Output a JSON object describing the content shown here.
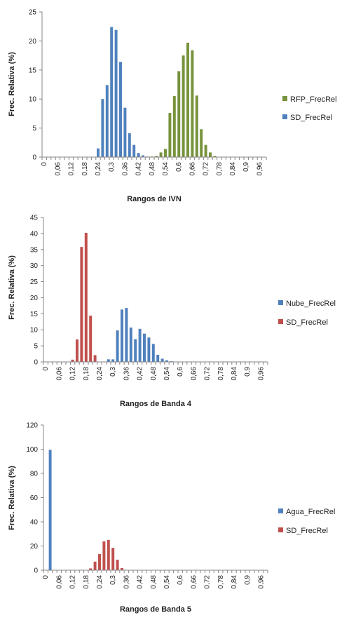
{
  "chart_data": [
    {
      "type": "bar",
      "xlabel": "Rangos de IVN",
      "ylabel": "Frec. Relativa (%)",
      "ylim": [
        0,
        25
      ],
      "yticks": [
        0,
        5,
        10,
        15,
        20,
        25
      ],
      "categories": [
        "0",
        "0,02",
        "0,04",
        "0,06",
        "0,08",
        "0,1",
        "0,12",
        "0,14",
        "0,16",
        "0,18",
        "0,2",
        "0,22",
        "0,24",
        "0,26",
        "0,28",
        "0,3",
        "0,32",
        "0,34",
        "0,36",
        "0,38",
        "0,4",
        "0,42",
        "0,44",
        "0,46",
        "0,48",
        "0,5",
        "0,52",
        "0,54",
        "0,56",
        "0,58",
        "0,6",
        "0,62",
        "0,64",
        "0,66",
        "0,68",
        "0,7",
        "0,72",
        "0,74",
        "0,76",
        "0,78",
        "0,8",
        "0,82",
        "0,84",
        "0,86",
        "0,88",
        "0,9",
        "0,92",
        "0,94",
        "0,96",
        "0,98"
      ],
      "xtick_labels": [
        "0",
        "0,06",
        "0,12",
        "0,18",
        "0,24",
        "0,3",
        "0,36",
        "0,42",
        "0,48",
        "0,54",
        "0,6",
        "0,66",
        "0,72",
        "0,78",
        "0,84",
        "0,9",
        "0,96"
      ],
      "series": [
        {
          "name": "RFP_FrecRel",
          "color": "#77933c",
          "values": [
            0,
            0,
            0,
            0,
            0,
            0,
            0,
            0,
            0,
            0,
            0,
            0,
            0,
            0,
            0,
            0,
            0,
            0,
            0,
            0,
            0,
            0,
            0,
            0,
            0.1,
            0.2,
            0.8,
            1.4,
            7.6,
            10.5,
            14.8,
            17.5,
            19.7,
            18.4,
            10.6,
            4.8,
            2.1,
            0.8,
            0.2,
            0,
            0,
            0,
            0,
            0,
            0,
            0,
            0,
            0,
            0,
            0
          ]
        },
        {
          "name": "SD_FrecRel",
          "color": "#4f81bd",
          "values": [
            0,
            0,
            0,
            0,
            0,
            0,
            0,
            0,
            0,
            0,
            0,
            0,
            1.5,
            10.0,
            12.4,
            22.4,
            21.9,
            16.4,
            8.5,
            4.1,
            2.1,
            0.7,
            0.3,
            0.1,
            0,
            0,
            0,
            0,
            0,
            0,
            0,
            0,
            0,
            0,
            0,
            0,
            0,
            0,
            0,
            0,
            0,
            0,
            0,
            0,
            0,
            0,
            0,
            0,
            0,
            0
          ]
        }
      ],
      "legend_position": "right"
    },
    {
      "type": "bar",
      "xlabel": "Rangos de Banda 4",
      "ylabel": "Frec. Relativa (%)",
      "ylim": [
        0,
        45
      ],
      "yticks": [
        0,
        5,
        10,
        15,
        20,
        25,
        30,
        35,
        40,
        45
      ],
      "categories": [
        "0",
        "0,02",
        "0,04",
        "0,06",
        "0,08",
        "0,1",
        "0,12",
        "0,14",
        "0,16",
        "0,18",
        "0,2",
        "0,22",
        "0,24",
        "0,26",
        "0,28",
        "0,3",
        "0,32",
        "0,34",
        "0,36",
        "0,38",
        "0,4",
        "0,42",
        "0,44",
        "0,46",
        "0,48",
        "0,5",
        "0,52",
        "0,54",
        "0,56",
        "0,58",
        "0,6",
        "0,62",
        "0,64",
        "0,66",
        "0,68",
        "0,7",
        "0,72",
        "0,74",
        "0,76",
        "0,78",
        "0,8",
        "0,82",
        "0,84",
        "0,86",
        "0,88",
        "0,9",
        "0,92",
        "0,94",
        "0,96",
        "0,98"
      ],
      "xtick_labels": [
        "0",
        "0,06",
        "0,12",
        "0,18",
        "0,24",
        "0,3",
        "0,36",
        "0,42",
        "0,48",
        "0,54",
        "0,6",
        "0,66",
        "0,72",
        "0,78",
        "0,84",
        "0,9",
        "0,96"
      ],
      "series": [
        {
          "name": "Nube_FrecRel",
          "color": "#4f81bd",
          "values": [
            0,
            0,
            0,
            0,
            0,
            0,
            0,
            0,
            0,
            0,
            0,
            0,
            0,
            0,
            0.8,
            0.8,
            9.8,
            16.3,
            16.8,
            10.7,
            7.1,
            10.3,
            8.8,
            7.6,
            5.6,
            2.2,
            1.0,
            0.5,
            0.2,
            0,
            0,
            0,
            0,
            0,
            0,
            0,
            0,
            0,
            0,
            0,
            0,
            0,
            0,
            0,
            0,
            0,
            0,
            0,
            0,
            0
          ]
        },
        {
          "name": "SD_FrecRel",
          "color": "#c0504d",
          "values": [
            0,
            0,
            0,
            0,
            0,
            0,
            0.7,
            7.0,
            35.8,
            40.2,
            14.4,
            2.1,
            0,
            0,
            0,
            0,
            0,
            0,
            0,
            0,
            0,
            0,
            0,
            0,
            0,
            0,
            0,
            0,
            0,
            0,
            0,
            0,
            0,
            0,
            0,
            0,
            0,
            0,
            0,
            0,
            0,
            0,
            0,
            0,
            0,
            0,
            0,
            0,
            0,
            0
          ]
        }
      ],
      "legend_position": "right"
    },
    {
      "type": "bar",
      "xlabel": "Rangos de Banda 5",
      "ylabel": "Frec. Relativa (%)",
      "ylim": [
        0,
        120
      ],
      "yticks": [
        0,
        20,
        40,
        60,
        80,
        100,
        120
      ],
      "categories": [
        "0",
        "0,02",
        "0,04",
        "0,06",
        "0,08",
        "0,1",
        "0,12",
        "0,14",
        "0,16",
        "0,18",
        "0,2",
        "0,22",
        "0,24",
        "0,26",
        "0,28",
        "0,3",
        "0,32",
        "0,34",
        "0,36",
        "0,38",
        "0,4",
        "0,42",
        "0,44",
        "0,46",
        "0,48",
        "0,5",
        "0,52",
        "0,54",
        "0,56",
        "0,58",
        "0,6",
        "0,62",
        "0,64",
        "0,66",
        "0,68",
        "0,7",
        "0,72",
        "0,74",
        "0,76",
        "0,78",
        "0,8",
        "0,82",
        "0,84",
        "0,86",
        "0,88",
        "0,9",
        "0,92",
        "0,94",
        "0,96",
        "0,98"
      ],
      "xtick_labels": [
        "0",
        "0,06",
        "0,12",
        "0,18",
        "0,24",
        "0,3",
        "0,36",
        "0,42",
        "0,48",
        "0,54",
        "0,6",
        "0,66",
        "0,72",
        "0,78",
        "0,84",
        "0,9",
        "0,96"
      ],
      "series": [
        {
          "name": "Agua_FrecRel",
          "color": "#4f81bd",
          "values": [
            0,
            99.5,
            0,
            0,
            0,
            0,
            0,
            0,
            0,
            0,
            0,
            0,
            0,
            0,
            0,
            0,
            0,
            0,
            0,
            0,
            0,
            0,
            0,
            0,
            0,
            0,
            0,
            0,
            0,
            0,
            0,
            0,
            0,
            0,
            0,
            0,
            0,
            0,
            0,
            0,
            0,
            0,
            0,
            0,
            0,
            0,
            0,
            0,
            0,
            0
          ]
        },
        {
          "name": "SD_FrecRel",
          "color": "#c0504d",
          "values": [
            0,
            0,
            0,
            0,
            0,
            0,
            0,
            0,
            0,
            0,
            1.5,
            7.1,
            13.3,
            23.9,
            25.0,
            18.5,
            8.7,
            1.8,
            0,
            0,
            0,
            0,
            0,
            0,
            0,
            0,
            0,
            0,
            0,
            0,
            0,
            0,
            0,
            0,
            0,
            0,
            0,
            0,
            0,
            0,
            0,
            0,
            0,
            0,
            0,
            0,
            0,
            0,
            0,
            0
          ]
        }
      ],
      "legend_position": "right"
    }
  ]
}
